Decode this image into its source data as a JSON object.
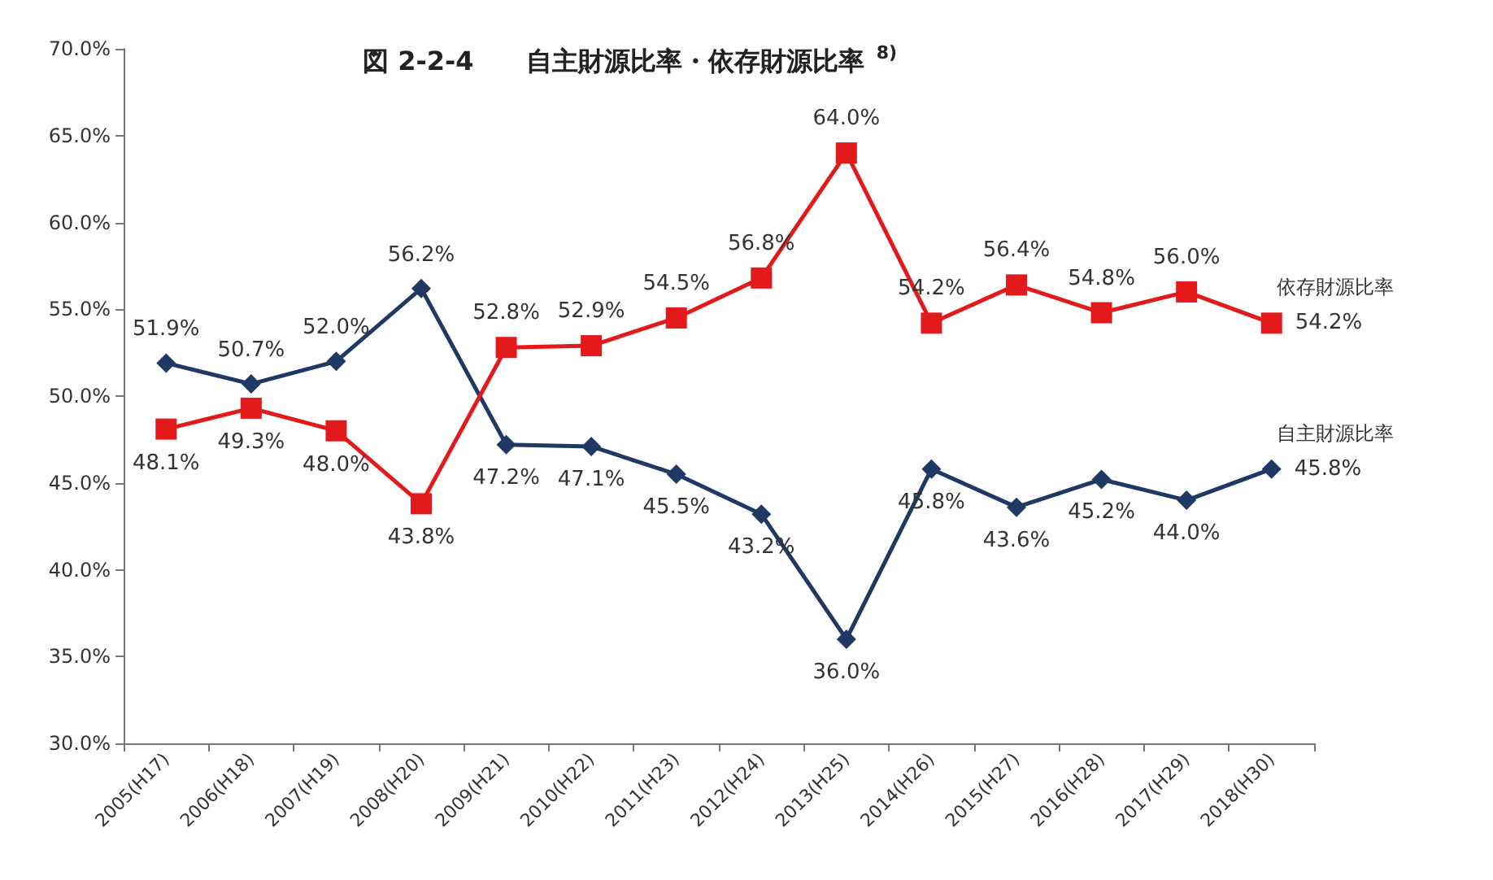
{
  "chart_data": {
    "type": "line",
    "title": "図 2-2-4　　自主財源比率・依存財源比率 $^{8)}$",
    "categories": [
      "2005(H17)",
      "2006(H18)",
      "2007(H19)",
      "2008(H20)",
      "2009(H21)",
      "2010(H22)",
      "2011(H23)",
      "2012(H24)",
      "2013(H25)",
      "2014(H26)",
      "2015(H27)",
      "2016(H28)",
      "2017(H29)",
      "2018(H30)"
    ],
    "series": [
      {
        "name": "自主財源比率",
        "color": "#1f3864",
        "marker": "diamond",
        "values": [
          51.9,
          50.7,
          52.0,
          56.2,
          47.2,
          47.1,
          45.5,
          43.2,
          36.0,
          45.8,
          43.6,
          45.2,
          44.0,
          45.8
        ],
        "value_labels": [
          "51.9%",
          "50.7%",
          "52.0%",
          "56.2%",
          "47.2%",
          "47.1%",
          "45.5%",
          "43.2%",
          "36.0%",
          "45.8%",
          "43.6%",
          "45.2%",
          "44.0%",
          "45.8%"
        ]
      },
      {
        "name": "依存財源比率",
        "color": "#e31a1c",
        "marker": "square",
        "values": [
          48.1,
          49.3,
          48.0,
          43.8,
          52.8,
          52.9,
          54.5,
          56.8,
          64.0,
          54.2,
          56.4,
          54.8,
          56.0,
          54.2
        ],
        "value_labels": [
          "48.1%",
          "49.3%",
          "48.0%",
          "43.8%",
          "52.8%",
          "52.9%",
          "54.5%",
          "56.8%",
          "64.0%",
          "54.2%",
          "56.4%",
          "54.8%",
          "56.0%",
          "54.2%"
        ]
      }
    ],
    "ylim": [
      30,
      70
    ],
    "yticks": [
      {
        "value": 30,
        "label": "30.0%"
      },
      {
        "value": 35,
        "label": "35.0%"
      },
      {
        "value": 40,
        "label": "40.0%"
      },
      {
        "value": 45,
        "label": "45.0%"
      },
      {
        "value": 50,
        "label": "50.0%"
      },
      {
        "value": 55,
        "label": "55.0%"
      },
      {
        "value": 60,
        "label": "60.0%"
      },
      {
        "value": 65,
        "label": "65.0%"
      },
      {
        "value": 70,
        "label": "70.0%"
      }
    ],
    "grid": false,
    "legend": false,
    "line_style": "solid"
  }
}
